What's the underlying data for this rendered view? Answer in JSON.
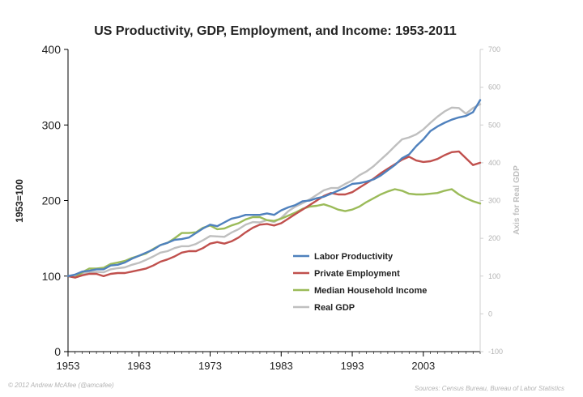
{
  "chart_data": {
    "type": "line",
    "title": "US Productivity, GDP, Employment, and Income: 1953-2011",
    "ylabel": "1953=100",
    "y2label": "Axis for Real GDP",
    "ylim": [
      0,
      400
    ],
    "y2lim": [
      -100,
      700
    ],
    "yticks": [
      0,
      100,
      200,
      300,
      400
    ],
    "y2ticks": [
      -100,
      0,
      100,
      200,
      300,
      400,
      500,
      600,
      700
    ],
    "xlim": [
      1953,
      2011
    ],
    "xticks": [
      1953,
      1963,
      1973,
      1983,
      1993,
      2003
    ],
    "grid": false,
    "legend_position": "center-right",
    "x": [
      1953,
      1954,
      1955,
      1956,
      1957,
      1958,
      1959,
      1960,
      1961,
      1962,
      1963,
      1964,
      1965,
      1966,
      1967,
      1968,
      1969,
      1970,
      1971,
      1972,
      1973,
      1974,
      1975,
      1976,
      1977,
      1978,
      1979,
      1980,
      1981,
      1982,
      1983,
      1984,
      1985,
      1986,
      1987,
      1988,
      1989,
      1990,
      1991,
      1992,
      1993,
      1994,
      1995,
      1996,
      1997,
      1998,
      1999,
      2000,
      2001,
      2002,
      2003,
      2004,
      2005,
      2006,
      2007,
      2008,
      2009,
      2010,
      2011
    ],
    "series": [
      {
        "name": "Labor Productivity",
        "color": "#4f81bd",
        "axis": "left",
        "values": [
          100,
          102,
          106,
          107,
          109,
          109,
          114,
          115,
          118,
          123,
          127,
          131,
          135,
          141,
          144,
          148,
          149,
          151,
          157,
          163,
          168,
          166,
          171,
          176,
          178,
          181,
          181,
          181,
          183,
          181,
          187,
          191,
          194,
          199,
          200,
          203,
          205,
          209,
          213,
          217,
          222,
          223,
          225,
          228,
          233,
          240,
          247,
          256,
          261,
          272,
          281,
          292,
          298,
          303,
          307,
          310,
          312,
          317,
          333
        ]
      },
      {
        "name": "Private Employment",
        "color": "#c0504d",
        "axis": "left",
        "values": [
          100,
          98,
          101,
          103,
          103,
          100,
          103,
          104,
          104,
          106,
          108,
          110,
          114,
          119,
          122,
          126,
          131,
          133,
          133,
          137,
          143,
          145,
          143,
          146,
          151,
          158,
          164,
          168,
          169,
          167,
          170,
          176,
          182,
          188,
          194,
          200,
          206,
          210,
          208,
          208,
          211,
          217,
          223,
          229,
          236,
          242,
          248,
          254,
          258,
          253,
          251,
          252,
          255,
          260,
          264,
          265,
          256,
          247,
          250
        ]
      },
      {
        "name": "Median Household Income",
        "color": "#9bbb59",
        "axis": "left",
        "values": [
          100,
          98,
          105,
          110,
          110,
          111,
          116,
          118,
          120,
          124,
          127,
          130,
          136,
          141,
          144,
          150,
          157,
          157,
          158,
          164,
          167,
          162,
          163,
          167,
          170,
          175,
          178,
          178,
          174,
          173,
          176,
          180,
          184,
          189,
          192,
          193,
          195,
          192,
          188,
          186,
          188,
          192,
          198,
          203,
          208,
          212,
          215,
          213,
          209,
          208,
          208,
          209,
          210,
          213,
          215,
          208,
          203,
          199,
          196
        ]
      },
      {
        "name": "Real GDP",
        "color": "#bfbfbf",
        "axis": "right",
        "values": [
          100,
          99,
          107,
          109,
          111,
          110,
          118,
          121,
          123,
          130,
          135,
          143,
          152,
          162,
          166,
          174,
          179,
          179,
          185,
          195,
          206,
          205,
          204,
          215,
          224,
          236,
          243,
          242,
          248,
          243,
          254,
          272,
          284,
          293,
          303,
          315,
          327,
          333,
          333,
          344,
          353,
          367,
          377,
          391,
          408,
          425,
          444,
          462,
          467,
          475,
          488,
          506,
          522,
          536,
          546,
          545,
          530,
          545,
          555
        ]
      }
    ]
  },
  "footer": {
    "credit": "© 2012 Andrew McAfee  (@amcafee)",
    "sources": "Sources: Census Bureau, Bureau of Labor Statistics"
  }
}
